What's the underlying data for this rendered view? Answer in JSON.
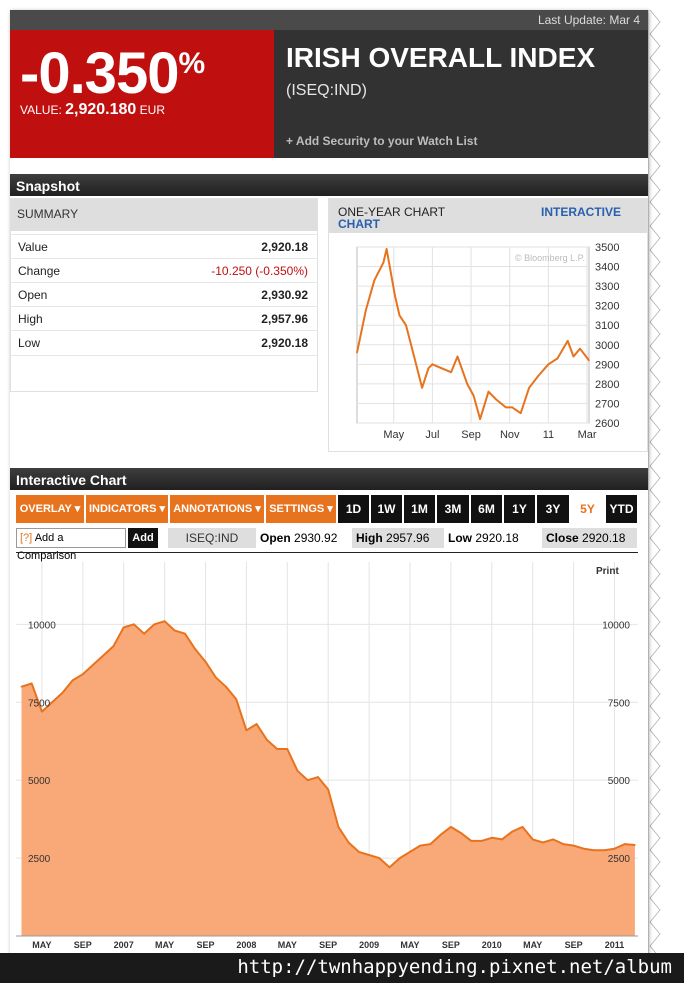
{
  "header": {
    "last_update": "Last Update: Mar 4",
    "change_pct": "-0.350",
    "pct_sign": "%",
    "value_label": "VALUE:",
    "value": "2,920.180",
    "currency": "EUR",
    "title": "IRISH OVERALL INDEX",
    "ticker": "(ISEQ:IND)",
    "watchlist": "+ Add Security to your Watch List"
  },
  "snapshot": {
    "title": "Snapshot",
    "summary_label": "SUMMARY",
    "rows": [
      {
        "label": "Value",
        "value": "2,920.18"
      },
      {
        "label": "Change",
        "value": "-10.250 (-0.350%)"
      },
      {
        "label": "Open",
        "value": "2,930.92"
      },
      {
        "label": "High",
        "value": "2,957.96"
      },
      {
        "label": "Low",
        "value": "2,920.18"
      }
    ],
    "chart_label": "ONE-YEAR CHART",
    "interactive_link_1": "INTERACTIVE",
    "interactive_link_2": "CHART",
    "watermark": "© Bloomberg L.P."
  },
  "interactive": {
    "title": "Interactive Chart",
    "menus": [
      "OVERLAY ▾",
      "INDICATORS ▾",
      "ANNOTATIONS ▾",
      "SETTINGS ▾"
    ],
    "ranges": [
      "1D",
      "1W",
      "1M",
      "3M",
      "6M",
      "1Y",
      "3Y",
      "5Y",
      "YTD"
    ],
    "active_range": "5Y",
    "comparison_icon": "[?]",
    "comparison_label": "Add a Comparison",
    "add_button": "Add",
    "ticker": "ISEQ:IND",
    "open_label": "Open",
    "open_value": "2930.92",
    "high_label": "High",
    "high_value": "2957.96",
    "low_label": "Low",
    "low_value": "2920.18",
    "close_label": "Close",
    "close_value": "2920.18",
    "print": "Print"
  },
  "footer": {
    "url": "http://twnhappyending.pixnet.net/album"
  },
  "colors": {
    "red": "#c00f0f",
    "orange": "#e8731e",
    "area_fill": "#f9a978",
    "line": "#e8731e"
  },
  "chart_data": [
    {
      "type": "line",
      "title": "ONE-YEAR CHART",
      "x_tick_labels": [
        "May",
        "Jul",
        "Sep",
        "Nov",
        "11",
        "Mar"
      ],
      "y_ticks": [
        2600,
        2700,
        2800,
        2900,
        3000,
        3100,
        3200,
        3300,
        3400,
        3500
      ],
      "ylim": [
        2600,
        3500
      ],
      "y_axis_side": "right",
      "grid": true,
      "series": [
        {
          "x": [
            "2010-03-04",
            "2010-03-18",
            "2010-04-01",
            "2010-04-15",
            "2010-04-20",
            "2010-05-03",
            "2010-05-10",
            "2010-05-20",
            "2010-06-01",
            "2010-06-15",
            "2010-06-25",
            "2010-07-01",
            "2010-07-15",
            "2010-07-30",
            "2010-08-10",
            "2010-08-25",
            "2010-09-05",
            "2010-09-15",
            "2010-09-28",
            "2010-10-10",
            "2010-10-25",
            "2010-11-05",
            "2010-11-18",
            "2010-12-01",
            "2010-12-15",
            "2011-01-01",
            "2011-01-15",
            "2011-02-01",
            "2011-02-10",
            "2011-02-20",
            "2011-03-04"
          ],
          "values": [
            2960,
            3180,
            3330,
            3420,
            3490,
            3250,
            3150,
            3100,
            2960,
            2780,
            2880,
            2900,
            2880,
            2860,
            2940,
            2800,
            2740,
            2620,
            2760,
            2720,
            2680,
            2680,
            2650,
            2780,
            2840,
            2900,
            2930,
            3020,
            2940,
            2980,
            2920
          ]
        }
      ]
    },
    {
      "type": "area",
      "title": "",
      "x_tick_labels": [
        "MAY",
        "SEP",
        "2007",
        "MAY",
        "SEP",
        "2008",
        "MAY",
        "SEP",
        "2009",
        "MAY",
        "SEP",
        "2010",
        "MAY",
        "SEP",
        "2011"
      ],
      "y_ticks": [
        2500,
        5000,
        7500,
        10000
      ],
      "ylim": [
        0,
        12000
      ],
      "grid": true,
      "series": [
        {
          "x": [
            "2006-03",
            "2006-04",
            "2006-05",
            "2006-06",
            "2006-07",
            "2006-08",
            "2006-09",
            "2006-10",
            "2006-11",
            "2006-12",
            "2007-01",
            "2007-02",
            "2007-03",
            "2007-04",
            "2007-05",
            "2007-06",
            "2007-07",
            "2007-08",
            "2007-09",
            "2007-10",
            "2007-11",
            "2007-12",
            "2008-01",
            "2008-02",
            "2008-03",
            "2008-04",
            "2008-05",
            "2008-06",
            "2008-07",
            "2008-08",
            "2008-09",
            "2008-10",
            "2008-11",
            "2008-12",
            "2009-01",
            "2009-02",
            "2009-03",
            "2009-04",
            "2009-05",
            "2009-06",
            "2009-07",
            "2009-08",
            "2009-09",
            "2009-10",
            "2009-11",
            "2009-12",
            "2010-01",
            "2010-02",
            "2010-03",
            "2010-04",
            "2010-05",
            "2010-06",
            "2010-07",
            "2010-08",
            "2010-09",
            "2010-10",
            "2010-11",
            "2010-12",
            "2011-01",
            "2011-02",
            "2011-03"
          ],
          "values": [
            8000,
            8100,
            7200,
            7500,
            7800,
            8200,
            8400,
            8700,
            9000,
            9300,
            9900,
            10000,
            9700,
            10000,
            10100,
            9800,
            9700,
            9200,
            8800,
            8300,
            8000,
            7600,
            6600,
            6800,
            6300,
            6000,
            6000,
            5300,
            5000,
            5100,
            4700,
            3500,
            3000,
            2700,
            2600,
            2500,
            2200,
            2500,
            2700,
            2900,
            2950,
            3250,
            3500,
            3300,
            3050,
            3050,
            3150,
            3100,
            3350,
            3500,
            3100,
            3000,
            3100,
            2950,
            2900,
            2800,
            2750,
            2750,
            2800,
            2950,
            2920
          ]
        }
      ]
    }
  ]
}
